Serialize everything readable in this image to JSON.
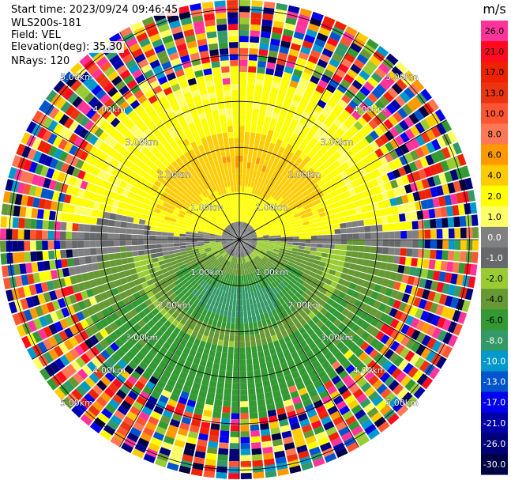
{
  "header": {
    "start_time": "Start time: 2023/09/24 09:46:45",
    "site": "WLS200s-181",
    "field": "Field: VEL",
    "elevation": "Elevation(deg): 35.30",
    "nrays": "NRays: 120"
  },
  "chart_data": {
    "type": "heatmap",
    "projection": "polar-ppi",
    "field": "VEL",
    "unit": "m/s",
    "nrays": 120,
    "range_rings_km": [
      1.0,
      2.0,
      3.0,
      4.0,
      5.0
    ],
    "ring_label_text": [
      "1.00km",
      "2.00km",
      "3.00km",
      "4.00km",
      "5.00km"
    ],
    "max_range_km": 5.2,
    "gate_count": 40,
    "spoke_angles_deg": [
      0,
      30,
      60,
      90,
      120,
      150,
      180,
      210,
      240,
      270,
      300,
      330
    ],
    "colorbar": {
      "ticks": [
        "26.0",
        "21.0",
        "17.0",
        "13.0",
        "10.0",
        "8.0",
        "6.0",
        "4.0",
        "2.0",
        "1.0",
        "0.0",
        "-1.0",
        "-2.0",
        "-4.0",
        "-6.0",
        "-8.0",
        "-10.0",
        "-13.0",
        "-17.0",
        "-21.0",
        "-26.0",
        "-30.0"
      ],
      "colors": [
        "#ff3399",
        "#ff0a1e",
        "#ee2200",
        "#ee3311",
        "#ff5533",
        "#ff7755",
        "#ff9900",
        "#ffcc00",
        "#ffff00",
        "#ffff66",
        "#808080",
        "#66686a",
        "#99cc33",
        "#669933",
        "#339933",
        "#339966",
        "#0099cc",
        "#0055cc",
        "#0000ee",
        "#0000aa",
        "#000077",
        "#000044"
      ]
    },
    "pattern_description": [
      {
        "sector_deg": [
          270,
          90
        ],
        "range_km": [
          0.5,
          3.0
        ],
        "value": 2.0
      },
      {
        "sector_deg": [
          330,
          30
        ],
        "range_km": [
          1.0,
          2.3
        ],
        "value": 8.0
      },
      {
        "sector_deg": [
          90,
          270
        ],
        "range_km": [
          0.5,
          3.5
        ],
        "value": -4.0
      },
      {
        "sector_deg": [
          150,
          210
        ],
        "range_km": [
          0.8,
          1.8
        ],
        "value": -8.0
      },
      {
        "sector_deg": [
          0,
          360
        ],
        "range_km": [
          3.8,
          5.2
        ],
        "value": "noise"
      }
    ]
  }
}
